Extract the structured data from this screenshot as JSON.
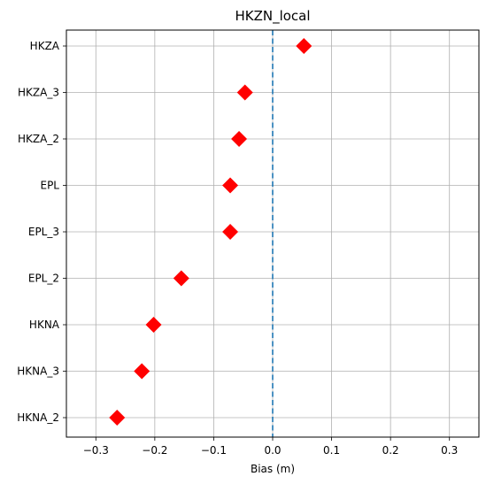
{
  "chart_data": {
    "type": "scatter",
    "title": "HKZN_local",
    "xlabel": "Bias (m)",
    "ylabel": "",
    "xlim": [
      -0.35,
      0.35
    ],
    "x_ticks": [
      -0.3,
      -0.2,
      -0.1,
      0.0,
      0.1,
      0.2,
      0.3
    ],
    "x_tick_labels": [
      "−0.3",
      "−0.2",
      "−0.1",
      "0.0",
      "0.1",
      "0.2",
      "0.3"
    ],
    "categories": [
      "HKZA",
      "HKZA_3",
      "HKZA_2",
      "EPL",
      "EPL_3",
      "EPL_2",
      "HKNA",
      "HKNA_3",
      "HKNA_2"
    ],
    "values": [
      0.053,
      -0.047,
      -0.057,
      -0.072,
      -0.072,
      -0.155,
      -0.202,
      -0.222,
      -0.264
    ],
    "marker": "diamond",
    "marker_color": "#ff0000",
    "reference_line": {
      "x": 0.0,
      "style": "dashed",
      "color": "#1f77b4"
    },
    "grid": true
  }
}
